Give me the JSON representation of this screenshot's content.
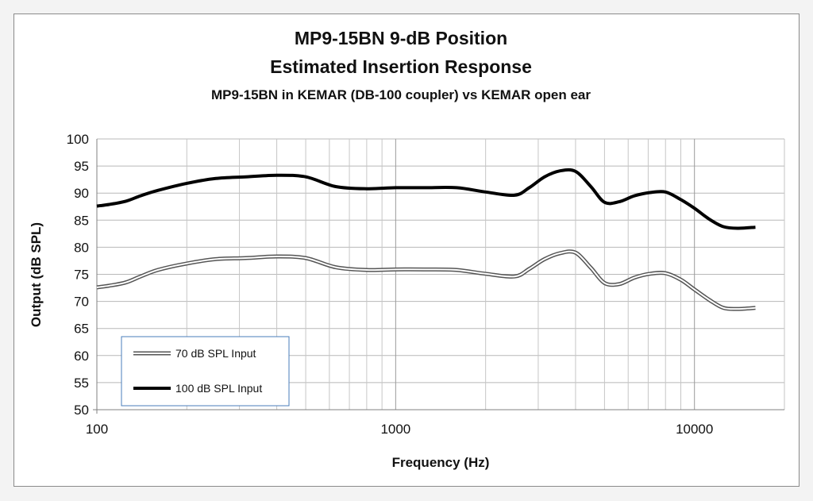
{
  "chart_data": {
    "type": "line",
    "title": "MP9-15BN  9-dB Position",
    "subtitle": "Estimated Insertion Response",
    "subtitle2": "MP9-15BN in KEMAR (DB-100 coupler) vs KEMAR open ear",
    "xlabel": "Frequency (Hz)",
    "ylabel": "Output (dB SPL)",
    "xscale": "log",
    "xlim": [
      100,
      20000
    ],
    "ylim": [
      50,
      100
    ],
    "yticks": [
      "50",
      "55",
      "60",
      "65",
      "70",
      "75",
      "80",
      "85",
      "90",
      "95",
      "100"
    ],
    "xticks": [
      "100",
      "1000",
      "10000"
    ],
    "grid": true,
    "legend_position": "bottom-left",
    "series": [
      {
        "name": "70 dB SPL Input",
        "style": "double",
        "color": "#555555",
        "x": [
          100,
          110,
          125,
          140,
          160,
          200,
          250,
          315,
          400,
          500,
          630,
          800,
          1000,
          1250,
          1600,
          2000,
          2500,
          2800,
          3150,
          3550,
          4000,
          4500,
          5000,
          5600,
          6300,
          7100,
          8000,
          9000,
          10000,
          11200,
          12500,
          14000,
          16000
        ],
        "y": [
          72.6,
          72.9,
          73.5,
          74.6,
          75.8,
          77.0,
          77.8,
          78.0,
          78.3,
          78.0,
          76.3,
          75.8,
          75.9,
          75.9,
          75.8,
          75.1,
          74.6,
          76.0,
          77.8,
          78.9,
          79.0,
          76.2,
          73.4,
          73.2,
          74.4,
          75.1,
          75.2,
          74.0,
          72.2,
          70.3,
          68.8,
          68.6,
          68.8
        ]
      },
      {
        "name": "100 dB SPL Input",
        "style": "solid",
        "color": "#000000",
        "x": [
          100,
          110,
          125,
          140,
          160,
          200,
          250,
          315,
          400,
          500,
          630,
          800,
          1000,
          1250,
          1600,
          2000,
          2500,
          2800,
          3150,
          3550,
          4000,
          4500,
          5000,
          5600,
          6300,
          7100,
          8000,
          9000,
          10000,
          11200,
          12500,
          14000,
          16000
        ],
        "y": [
          87.6,
          87.9,
          88.5,
          89.5,
          90.5,
          91.8,
          92.7,
          93.0,
          93.3,
          93.0,
          91.2,
          90.8,
          91.0,
          91.0,
          91.0,
          90.2,
          89.6,
          91.0,
          93.0,
          94.1,
          94.0,
          91.2,
          88.3,
          88.4,
          89.5,
          90.1,
          90.2,
          88.8,
          87.2,
          85.2,
          83.8,
          83.5,
          83.7
        ]
      }
    ]
  }
}
